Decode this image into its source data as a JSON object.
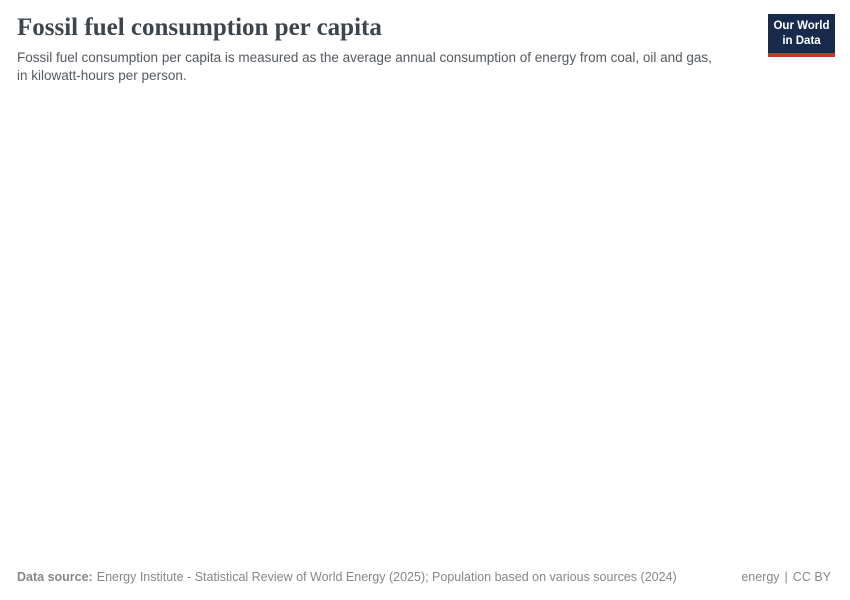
{
  "page": {
    "title": "Fossil fuel consumption per capita",
    "subtitle": "Fossil fuel consumption per capita is measured as the average annual consumption of energy from coal, oil and gas, in kilowatt-hours per person."
  },
  "logo": {
    "line1": "Our World",
    "line2": "in Data"
  },
  "footer": {
    "datasource_label": "Data source:",
    "datasource_text": "Energy Institute - Statistical Review of World Energy (2025); Population based on various sources (2024)",
    "topic": "energy",
    "separator": "|",
    "license": "CC BY"
  },
  "colors": {
    "title_color": "#3e464d",
    "subtitle_color": "#545a5f",
    "footer_color": "#878787",
    "logo_bg": "#182b4d",
    "logo_accent": "#c9372f",
    "page_bg": "#ffffff"
  },
  "chart_data": {
    "type": "line",
    "title": "Fossil fuel consumption per capita",
    "subtitle": "Fossil fuel consumption per capita is measured as the average annual consumption of energy from coal, oil and gas, in kilowatt-hours per person.",
    "x": [],
    "series": [],
    "plot_area_empty": true
  }
}
